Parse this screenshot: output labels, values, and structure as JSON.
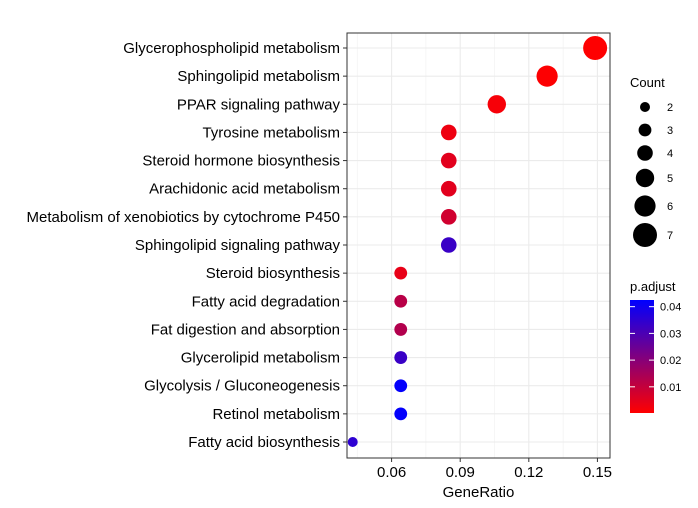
{
  "chart_data": {
    "type": "scatter",
    "title": "",
    "xlabel": "GeneRatio",
    "ylabel": "",
    "xlim": [
      0.0405,
      0.1555
    ],
    "xticks": [
      0.06,
      0.09,
      0.12,
      0.15
    ],
    "xtick_labels": [
      "0.06",
      "0.09",
      "0.12",
      "0.15"
    ],
    "grid": true,
    "legend_position": "right",
    "categories": [
      "Glycerophospholipid metabolism",
      "Sphingolipid metabolism",
      "PPAR signaling pathway",
      "Tyrosine metabolism",
      "Steroid hormone biosynthesis",
      "Arachidonic acid metabolism",
      "Metabolism of xenobiotics by cytochrome P450",
      "Sphingolipid signaling pathway",
      "Steroid biosynthesis",
      "Fatty acid degradation",
      "Fat digestion and absorption",
      "Glycerolipid metabolism",
      "Glycolysis / Gluconeogenesis",
      "Retinol metabolism",
      "Fatty acid biosynthesis"
    ],
    "points": [
      {
        "term": "Glycerophospholipid metabolism",
        "gene_ratio": 0.149,
        "count": 7,
        "p_adjust": 0.0003
      },
      {
        "term": "Sphingolipid metabolism",
        "gene_ratio": 0.128,
        "count": 6,
        "p_adjust": 0.0005
      },
      {
        "term": "PPAR signaling pathway",
        "gene_ratio": 0.106,
        "count": 5,
        "p_adjust": 0.0015
      },
      {
        "term": "Tyrosine metabolism",
        "gene_ratio": 0.085,
        "count": 4,
        "p_adjust": 0.003
      },
      {
        "term": "Steroid hormone biosynthesis",
        "gene_ratio": 0.085,
        "count": 4,
        "p_adjust": 0.005
      },
      {
        "term": "Arachidonic acid metabolism",
        "gene_ratio": 0.085,
        "count": 4,
        "p_adjust": 0.005
      },
      {
        "term": "Metabolism of xenobiotics by cytochrome P450",
        "gene_ratio": 0.085,
        "count": 4,
        "p_adjust": 0.008
      },
      {
        "term": "Sphingolipid signaling pathway",
        "gene_ratio": 0.085,
        "count": 4,
        "p_adjust": 0.033
      },
      {
        "term": "Steroid biosynthesis",
        "gene_ratio": 0.064,
        "count": 3,
        "p_adjust": 0.004
      },
      {
        "term": "Fatty acid degradation",
        "gene_ratio": 0.064,
        "count": 3,
        "p_adjust": 0.012
      },
      {
        "term": "Fat digestion and absorption",
        "gene_ratio": 0.064,
        "count": 3,
        "p_adjust": 0.013
      },
      {
        "term": "Glycerolipid metabolism",
        "gene_ratio": 0.064,
        "count": 3,
        "p_adjust": 0.033
      },
      {
        "term": "Glycolysis / Gluconeogenesis",
        "gene_ratio": 0.064,
        "count": 3,
        "p_adjust": 0.042
      },
      {
        "term": "Retinol metabolism",
        "gene_ratio": 0.064,
        "count": 3,
        "p_adjust": 0.042
      },
      {
        "term": "Fatty acid biosynthesis",
        "gene_ratio": 0.043,
        "count": 2,
        "p_adjust": 0.035
      }
    ],
    "size_legend": {
      "title": "Count",
      "values": [
        2,
        3,
        4,
        5,
        6,
        7
      ],
      "labels": [
        "2",
        "3",
        "4",
        "5",
        "6",
        "7"
      ]
    },
    "color_legend": {
      "title": "p.adjust",
      "range": [
        0.0002,
        0.0425
      ],
      "ticks": [
        0.01,
        0.02,
        0.03,
        0.04
      ],
      "tick_labels": [
        "0.01",
        "0.02",
        "0.03",
        "0.04"
      ],
      "low_color": "#ff0000",
      "high_color": "#0000ff"
    }
  }
}
